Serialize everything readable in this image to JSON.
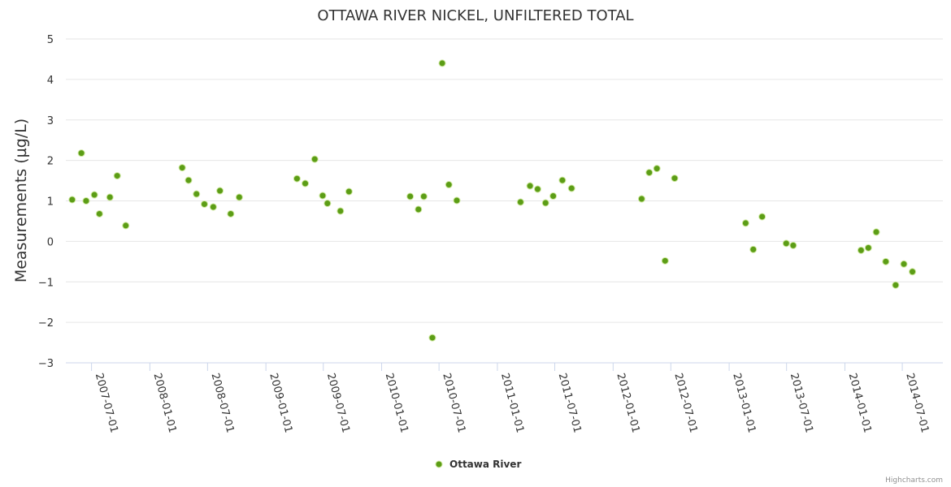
{
  "chart_data": {
    "type": "scatter",
    "title": "OTTAWA RIVER NICKEL, UNFILTERED TOTAL",
    "ylabel": "Measurements (µg/L)",
    "xlabel": "",
    "ylim": [
      -3,
      5
    ],
    "y_ticks": [
      5,
      4,
      3,
      2,
      1,
      0,
      -1,
      -2,
      -3
    ],
    "y_tick_labels": [
      "5",
      "4",
      "3",
      "2",
      "1",
      "0",
      "−1",
      "−2",
      "−3"
    ],
    "x_ticks": [
      "2007-07-01",
      "2008-01-01",
      "2008-07-01",
      "2009-01-01",
      "2009-07-01",
      "2010-01-01",
      "2010-07-01",
      "2011-01-01",
      "2011-07-01",
      "2012-01-01",
      "2012-07-01",
      "2013-01-01",
      "2013-07-01",
      "2014-01-01",
      "2014-07-01"
    ],
    "xlim": [
      "2007-04-11",
      "2014-11-06"
    ],
    "grid": true,
    "legend_position": "bottom-center",
    "marker_color": "#5c9d16",
    "marker_stroke": "#cfe8a0",
    "series": [
      {
        "name": "Ottawa River",
        "points": [
          {
            "x": "2007-05-01",
            "y": 1.03
          },
          {
            "x": "2007-05-30",
            "y": 2.18
          },
          {
            "x": "2007-06-14",
            "y": 1.0
          },
          {
            "x": "2007-07-10",
            "y": 1.15
          },
          {
            "x": "2007-07-26",
            "y": 0.68
          },
          {
            "x": "2007-08-28",
            "y": 1.09
          },
          {
            "x": "2007-09-20",
            "y": 1.62
          },
          {
            "x": "2007-10-17",
            "y": 0.39
          },
          {
            "x": "2008-04-12",
            "y": 1.82
          },
          {
            "x": "2008-05-02",
            "y": 1.51
          },
          {
            "x": "2008-05-27",
            "y": 1.17
          },
          {
            "x": "2008-06-21",
            "y": 0.92
          },
          {
            "x": "2008-07-19",
            "y": 0.85
          },
          {
            "x": "2008-08-09",
            "y": 1.25
          },
          {
            "x": "2008-09-12",
            "y": 0.68
          },
          {
            "x": "2008-10-09",
            "y": 1.09
          },
          {
            "x": "2009-04-09",
            "y": 1.55
          },
          {
            "x": "2009-05-05",
            "y": 1.43
          },
          {
            "x": "2009-06-04",
            "y": 2.03
          },
          {
            "x": "2009-06-29",
            "y": 1.13
          },
          {
            "x": "2009-07-14",
            "y": 0.94
          },
          {
            "x": "2009-08-24",
            "y": 0.75
          },
          {
            "x": "2009-09-20",
            "y": 1.23
          },
          {
            "x": "2010-04-01",
            "y": 1.11
          },
          {
            "x": "2010-04-27",
            "y": 0.79
          },
          {
            "x": "2010-05-14",
            "y": 1.11
          },
          {
            "x": "2010-06-10",
            "y": -2.38
          },
          {
            "x": "2010-07-11",
            "y": 4.4
          },
          {
            "x": "2010-08-01",
            "y": 1.4
          },
          {
            "x": "2010-08-26",
            "y": 1.01
          },
          {
            "x": "2011-03-15",
            "y": 0.97
          },
          {
            "x": "2011-04-14",
            "y": 1.37
          },
          {
            "x": "2011-05-08",
            "y": 1.29
          },
          {
            "x": "2011-06-02",
            "y": 0.95
          },
          {
            "x": "2011-06-26",
            "y": 1.12
          },
          {
            "x": "2011-07-25",
            "y": 1.51
          },
          {
            "x": "2011-08-23",
            "y": 1.31
          },
          {
            "x": "2012-03-31",
            "y": 1.05
          },
          {
            "x": "2012-04-24",
            "y": 1.7
          },
          {
            "x": "2012-05-18",
            "y": 1.8
          },
          {
            "x": "2012-06-13",
            "y": -0.48
          },
          {
            "x": "2012-07-13",
            "y": 1.56
          },
          {
            "x": "2013-02-22",
            "y": 0.45
          },
          {
            "x": "2013-03-18",
            "y": -0.2
          },
          {
            "x": "2013-04-15",
            "y": 0.61
          },
          {
            "x": "2013-06-30",
            "y": -0.05
          },
          {
            "x": "2013-07-22",
            "y": -0.1
          },
          {
            "x": "2014-02-21",
            "y": -0.22
          },
          {
            "x": "2014-03-16",
            "y": -0.16
          },
          {
            "x": "2014-04-10",
            "y": 0.23
          },
          {
            "x": "2014-05-10",
            "y": -0.5
          },
          {
            "x": "2014-06-10",
            "y": -1.08
          },
          {
            "x": "2014-07-06",
            "y": -0.56
          },
          {
            "x": "2014-08-02",
            "y": -0.75
          }
        ]
      }
    ],
    "credits": "Highcharts.com"
  }
}
